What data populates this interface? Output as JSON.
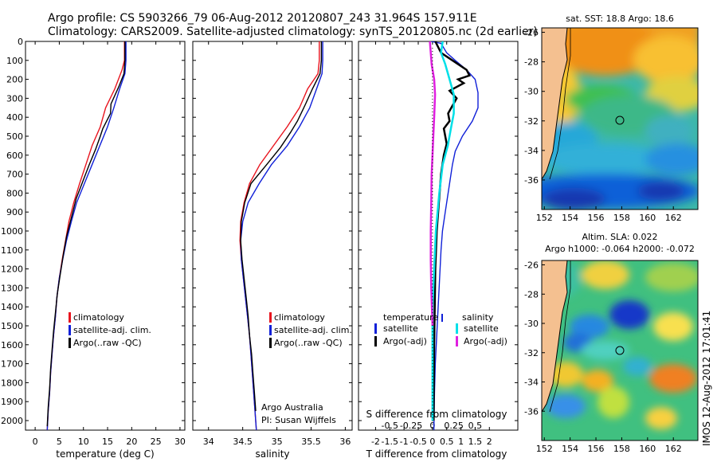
{
  "title_line1": "Argo profile: CS 5903266_79 06-Aug-2012 20120807_243 31.964S 157.911E",
  "title_line2": "Climatology: CARS2009. Satellite-adjusted climatology: synTS_20120805.nc (2d earlier)",
  "stamp": "IMOS 12-Aug-2012 17:01:41",
  "credit": {
    "line1": "Argo Australia",
    "line2": "PI: Susan Wijffels"
  },
  "colors": {
    "climatology": "#e8141e",
    "satellite": "#1020d8",
    "argo": "#000000",
    "sat_s": "#00e0e8",
    "argo_s": "#e020e0"
  },
  "depth_axis": {
    "ticks": [
      "0",
      "100",
      "200",
      "300",
      "400",
      "500",
      "600",
      "700",
      "800",
      "900",
      "1000",
      "1100",
      "1200",
      "1300",
      "1400",
      "1500",
      "1600",
      "1700",
      "1800",
      "1900",
      "2000"
    ],
    "ylim": [
      0,
      2050
    ]
  },
  "chart_data": [
    {
      "type": "line",
      "id": "temperature",
      "xlabel": "temperature (deg C)",
      "xticks": [
        "0",
        "5",
        "10",
        "15",
        "20",
        "25",
        "30"
      ],
      "xlim": [
        -2,
        31
      ],
      "legend": [
        "climatology",
        "satellite-adj. clim.",
        "Argo(..raw -QC)"
      ],
      "series": [
        {
          "name": "climatology",
          "color": "#e8141e",
          "points": [
            [
              18.5,
              0
            ],
            [
              18.5,
              100
            ],
            [
              18.0,
              150
            ],
            [
              16.5,
              250
            ],
            [
              14.6,
              350
            ],
            [
              13.5,
              450
            ],
            [
              11.8,
              550
            ],
            [
              10.5,
              650
            ],
            [
              9.2,
              750
            ],
            [
              8.0,
              850
            ],
            [
              7.0,
              950
            ],
            [
              6.3,
              1050
            ],
            [
              5.6,
              1150
            ],
            [
              5.0,
              1250
            ],
            [
              4.5,
              1350
            ],
            [
              4.2,
              1450
            ],
            [
              3.8,
              1550
            ],
            [
              3.5,
              1650
            ],
            [
              3.2,
              1750
            ],
            [
              3.0,
              1850
            ],
            [
              2.7,
              1950
            ],
            [
              2.5,
              2050
            ]
          ]
        },
        {
          "name": "satellite-adj. clim.",
          "color": "#1020d8",
          "points": [
            [
              18.8,
              0
            ],
            [
              18.8,
              100
            ],
            [
              18.6,
              170
            ],
            [
              17.5,
              250
            ],
            [
              16.3,
              350
            ],
            [
              15.0,
              450
            ],
            [
              13.4,
              550
            ],
            [
              11.8,
              650
            ],
            [
              10.2,
              750
            ],
            [
              8.6,
              850
            ],
            [
              7.5,
              950
            ],
            [
              6.5,
              1050
            ],
            [
              5.7,
              1150
            ],
            [
              5.0,
              1250
            ],
            [
              4.5,
              1350
            ],
            [
              4.2,
              1450
            ],
            [
              3.8,
              1550
            ],
            [
              3.5,
              1650
            ],
            [
              3.2,
              1750
            ],
            [
              3.0,
              1850
            ],
            [
              2.7,
              1950
            ],
            [
              2.5,
              2050
            ]
          ]
        },
        {
          "name": "Argo(..raw -QC)",
          "color": "#000000",
          "points": [
            [
              18.6,
              0
            ],
            [
              18.6,
              100
            ],
            [
              18.4,
              170
            ],
            [
              17.3,
              240
            ],
            [
              15.7,
              330
            ],
            [
              15.6,
              380
            ],
            [
              14.0,
              460
            ],
            [
              13.5,
              500
            ],
            [
              12.5,
              570
            ],
            [
              11.2,
              650
            ],
            [
              10.0,
              730
            ],
            [
              8.5,
              830
            ],
            [
              7.5,
              930
            ],
            [
              6.5,
              1030
            ],
            [
              5.8,
              1130
            ],
            [
              5.2,
              1230
            ],
            [
              4.6,
              1330
            ],
            [
              4.2,
              1430
            ],
            [
              3.8,
              1530
            ],
            [
              3.5,
              1630
            ],
            [
              3.2,
              1730
            ],
            [
              3.0,
              1830
            ],
            [
              2.7,
              1930
            ],
            [
              2.5,
              2030
            ]
          ]
        }
      ]
    },
    {
      "type": "line",
      "id": "salinity",
      "xlabel": "salinity",
      "xticks": [
        "34",
        "34.5",
        "35",
        "35.5",
        "36"
      ],
      "xlim": [
        33.77,
        36.1
      ],
      "legend": [
        "climatology",
        "satellite-adj. clim.",
        "Argo(..raw -QC)"
      ],
      "series": [
        {
          "name": "climatology",
          "color": "#e8141e",
          "points": [
            [
              35.62,
              0
            ],
            [
              35.62,
              100
            ],
            [
              35.6,
              170
            ],
            [
              35.45,
              250
            ],
            [
              35.33,
              350
            ],
            [
              35.15,
              450
            ],
            [
              34.95,
              550
            ],
            [
              34.75,
              650
            ],
            [
              34.6,
              750
            ],
            [
              34.52,
              850
            ],
            [
              34.47,
              950
            ],
            [
              34.46,
              1050
            ],
            [
              34.48,
              1150
            ],
            [
              34.51,
              1250
            ],
            [
              34.54,
              1350
            ],
            [
              34.57,
              1450
            ],
            [
              34.6,
              1550
            ],
            [
              34.62,
              1650
            ],
            [
              34.64,
              1750
            ],
            [
              34.66,
              1850
            ],
            [
              34.68,
              1950
            ],
            [
              34.7,
              2050
            ]
          ]
        },
        {
          "name": "satellite-adj. clim.",
          "color": "#1020d8",
          "points": [
            [
              35.67,
              0
            ],
            [
              35.67,
              100
            ],
            [
              35.66,
              170
            ],
            [
              35.58,
              250
            ],
            [
              35.48,
              350
            ],
            [
              35.33,
              450
            ],
            [
              35.15,
              550
            ],
            [
              34.92,
              650
            ],
            [
              34.74,
              750
            ],
            [
              34.58,
              850
            ],
            [
              34.5,
              950
            ],
            [
              34.47,
              1050
            ],
            [
              34.48,
              1150
            ],
            [
              34.51,
              1250
            ],
            [
              34.54,
              1350
            ],
            [
              34.57,
              1450
            ],
            [
              34.6,
              1550
            ],
            [
              34.62,
              1650
            ],
            [
              34.64,
              1750
            ],
            [
              34.66,
              1850
            ],
            [
              34.68,
              1950
            ],
            [
              34.7,
              2050
            ]
          ]
        },
        {
          "name": "Argo(..raw -QC)",
          "color": "#000000",
          "points": [
            [
              35.65,
              0
            ],
            [
              35.65,
              100
            ],
            [
              35.63,
              170
            ],
            [
              35.52,
              250
            ],
            [
              35.42,
              330
            ],
            [
              35.38,
              360
            ],
            [
              35.3,
              420
            ],
            [
              35.2,
              480
            ],
            [
              35.05,
              560
            ],
            [
              34.85,
              650
            ],
            [
              34.62,
              750
            ],
            [
              34.53,
              850
            ],
            [
              34.48,
              950
            ],
            [
              34.47,
              1050
            ],
            [
              34.49,
              1150
            ],
            [
              34.52,
              1250
            ],
            [
              34.55,
              1350
            ],
            [
              34.58,
              1450
            ],
            [
              34.6,
              1550
            ],
            [
              34.63,
              1650
            ],
            [
              34.65,
              1750
            ],
            [
              34.67,
              1850
            ],
            [
              34.69,
              1950
            ]
          ]
        }
      ]
    },
    {
      "type": "line",
      "id": "difference",
      "xlabel_top": "S difference from climatology",
      "xlabel": "T difference from climatology",
      "xticks": [
        "-2",
        "-1.5",
        "-1",
        "-0.5",
        "0",
        "0.5",
        "1",
        "1.5",
        "2"
      ],
      "xlim": [
        -2.6,
        3.0
      ],
      "sticks": [
        "-0.5",
        "-0.25",
        "0",
        "0.25",
        "0.5"
      ],
      "s_scale": 3,
      "legend_left_title": "temperature",
      "legend_right_title": "salinity",
      "legend_left": [
        "satellite",
        "Argo(-adj)"
      ],
      "legend_right": [
        "satellite",
        "Argo(-adj)"
      ],
      "series": [
        {
          "name": "T satellite",
          "color": "#1020d8",
          "points": [
            [
              -0.05,
              0
            ],
            [
              0.3,
              10
            ],
            [
              0.5,
              60
            ],
            [
              0.8,
              100
            ],
            [
              1.2,
              150
            ],
            [
              1.5,
              200
            ],
            [
              1.6,
              270
            ],
            [
              1.6,
              350
            ],
            [
              1.4,
              420
            ],
            [
              1.05,
              500
            ],
            [
              0.8,
              580
            ],
            [
              0.7,
              650
            ],
            [
              0.6,
              750
            ],
            [
              0.45,
              900
            ],
            [
              0.35,
              1000
            ],
            [
              0.3,
              1100
            ],
            [
              0.25,
              1250
            ],
            [
              0.2,
              1400
            ],
            [
              0.15,
              1550
            ],
            [
              0.1,
              1700
            ],
            [
              0.07,
              1850
            ],
            [
              0.05,
              2050
            ]
          ]
        },
        {
          "name": "T Argo(-adj)",
          "color": "#000000",
          "points": [
            [
              0.1,
              0
            ],
            [
              0.3,
              60
            ],
            [
              0.7,
              100
            ],
            [
              1.2,
              150
            ],
            [
              1.3,
              180
            ],
            [
              0.9,
              200
            ],
            [
              1.1,
              220
            ],
            [
              0.6,
              260
            ],
            [
              0.85,
              300
            ],
            [
              0.55,
              380
            ],
            [
              0.6,
              420
            ],
            [
              0.4,
              460
            ],
            [
              0.5,
              540
            ],
            [
              0.4,
              600
            ],
            [
              0.3,
              700
            ],
            [
              0.25,
              800
            ],
            [
              0.2,
              900
            ],
            [
              0.15,
              1000
            ],
            [
              0.1,
              1200
            ],
            [
              0.08,
              1400
            ],
            [
              0.06,
              1600
            ],
            [
              0.05,
              1800
            ],
            [
              0.04,
              2000
            ]
          ]
        },
        {
          "name": "S satellite",
          "color": "#00e0e8",
          "points": [
            [
              0.12,
              0
            ],
            [
              0.1,
              60
            ],
            [
              0.15,
              120
            ],
            [
              0.2,
              200
            ],
            [
              0.25,
              280
            ],
            [
              0.25,
              380
            ],
            [
              0.22,
              450
            ],
            [
              0.18,
              550
            ],
            [
              0.12,
              650
            ],
            [
              0.08,
              800
            ],
            [
              0.04,
              1000
            ],
            [
              0.02,
              1200
            ],
            [
              0.0,
              1400
            ],
            [
              0.0,
              2000
            ]
          ]
        },
        {
          "name": "S Argo(-adj)",
          "color": "#e020e0",
          "points": [
            [
              -0.03,
              0
            ],
            [
              -0.02,
              60
            ],
            [
              -0.01,
              120
            ],
            [
              0.02,
              200
            ],
            [
              0.03,
              280
            ],
            [
              0.02,
              400
            ],
            [
              0.01,
              500
            ],
            [
              0.0,
              600
            ],
            [
              -0.01,
              700
            ],
            [
              -0.015,
              850
            ],
            [
              -0.02,
              1000
            ],
            [
              -0.02,
              1150
            ],
            [
              -0.015,
              1300
            ],
            [
              0.0,
              1500
            ]
          ]
        }
      ]
    }
  ],
  "maps": {
    "sst": {
      "title": "sat. SST: 18.8 Argo: 18.6",
      "yticks": [
        "-26",
        "-28",
        "-30",
        "-32",
        "-34",
        "-36"
      ],
      "xticks": [
        "152",
        "154",
        "156",
        "158",
        "160",
        "162"
      ]
    },
    "sla": {
      "title1": "Altim. SLA: 0.022",
      "title2": "Argo h1000: -0.064 h2000: -0.072",
      "yticks": [
        "-26",
        "-28",
        "-30",
        "-32",
        "-34",
        "-36"
      ],
      "xticks": [
        "152",
        "154",
        "156",
        "158",
        "160",
        "162"
      ]
    },
    "marker": {
      "lon": 157.911,
      "lat": -31.964
    }
  }
}
